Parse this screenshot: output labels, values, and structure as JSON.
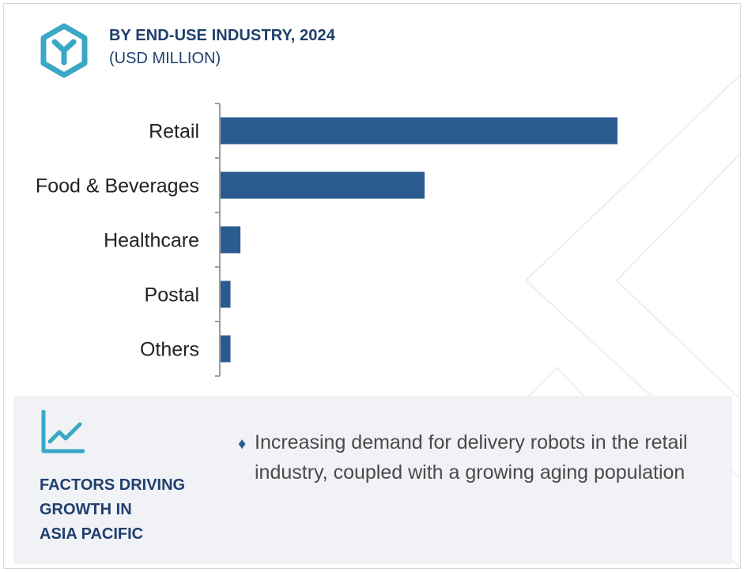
{
  "header": {
    "title": "BY END-USE INDUSTRY, 2024",
    "subtitle": "(USD MILLION)",
    "logo_icon": "hexagon-y-icon"
  },
  "chart_data": {
    "type": "bar",
    "orientation": "horizontal",
    "title": "BY END-USE INDUSTRY, 2024",
    "subtitle": "(USD MILLION)",
    "categories": [
      "Retail",
      "Food & Beverages",
      "Healthcare",
      "Postal",
      "Others"
    ],
    "values": [
      100,
      51.4,
      5,
      2.5,
      2.5
    ],
    "xlim": [
      0,
      100
    ],
    "bar_color": "#2b5c8f",
    "axis_color": "#9e9e9e",
    "grid": false,
    "legend": "none",
    "xlabel": "",
    "ylabel": ""
  },
  "factors": {
    "icon": "line-chart-trend-icon",
    "heading_lines": [
      "FACTORS DRIVING",
      "GROWTH IN",
      "ASIA PACIFIC"
    ],
    "bullet_icon": "diamond-bullet-icon",
    "bullet_symbol": "♦",
    "items": [
      "Increasing demand for delivery robots in the retail industry, coupled with a growing aging population"
    ]
  },
  "colors": {
    "accent_teal": "#3aa8c4",
    "navy_text": "#1f3f6d",
    "bar": "#2b5c8f",
    "panel_bg": "#f0f2f6"
  }
}
